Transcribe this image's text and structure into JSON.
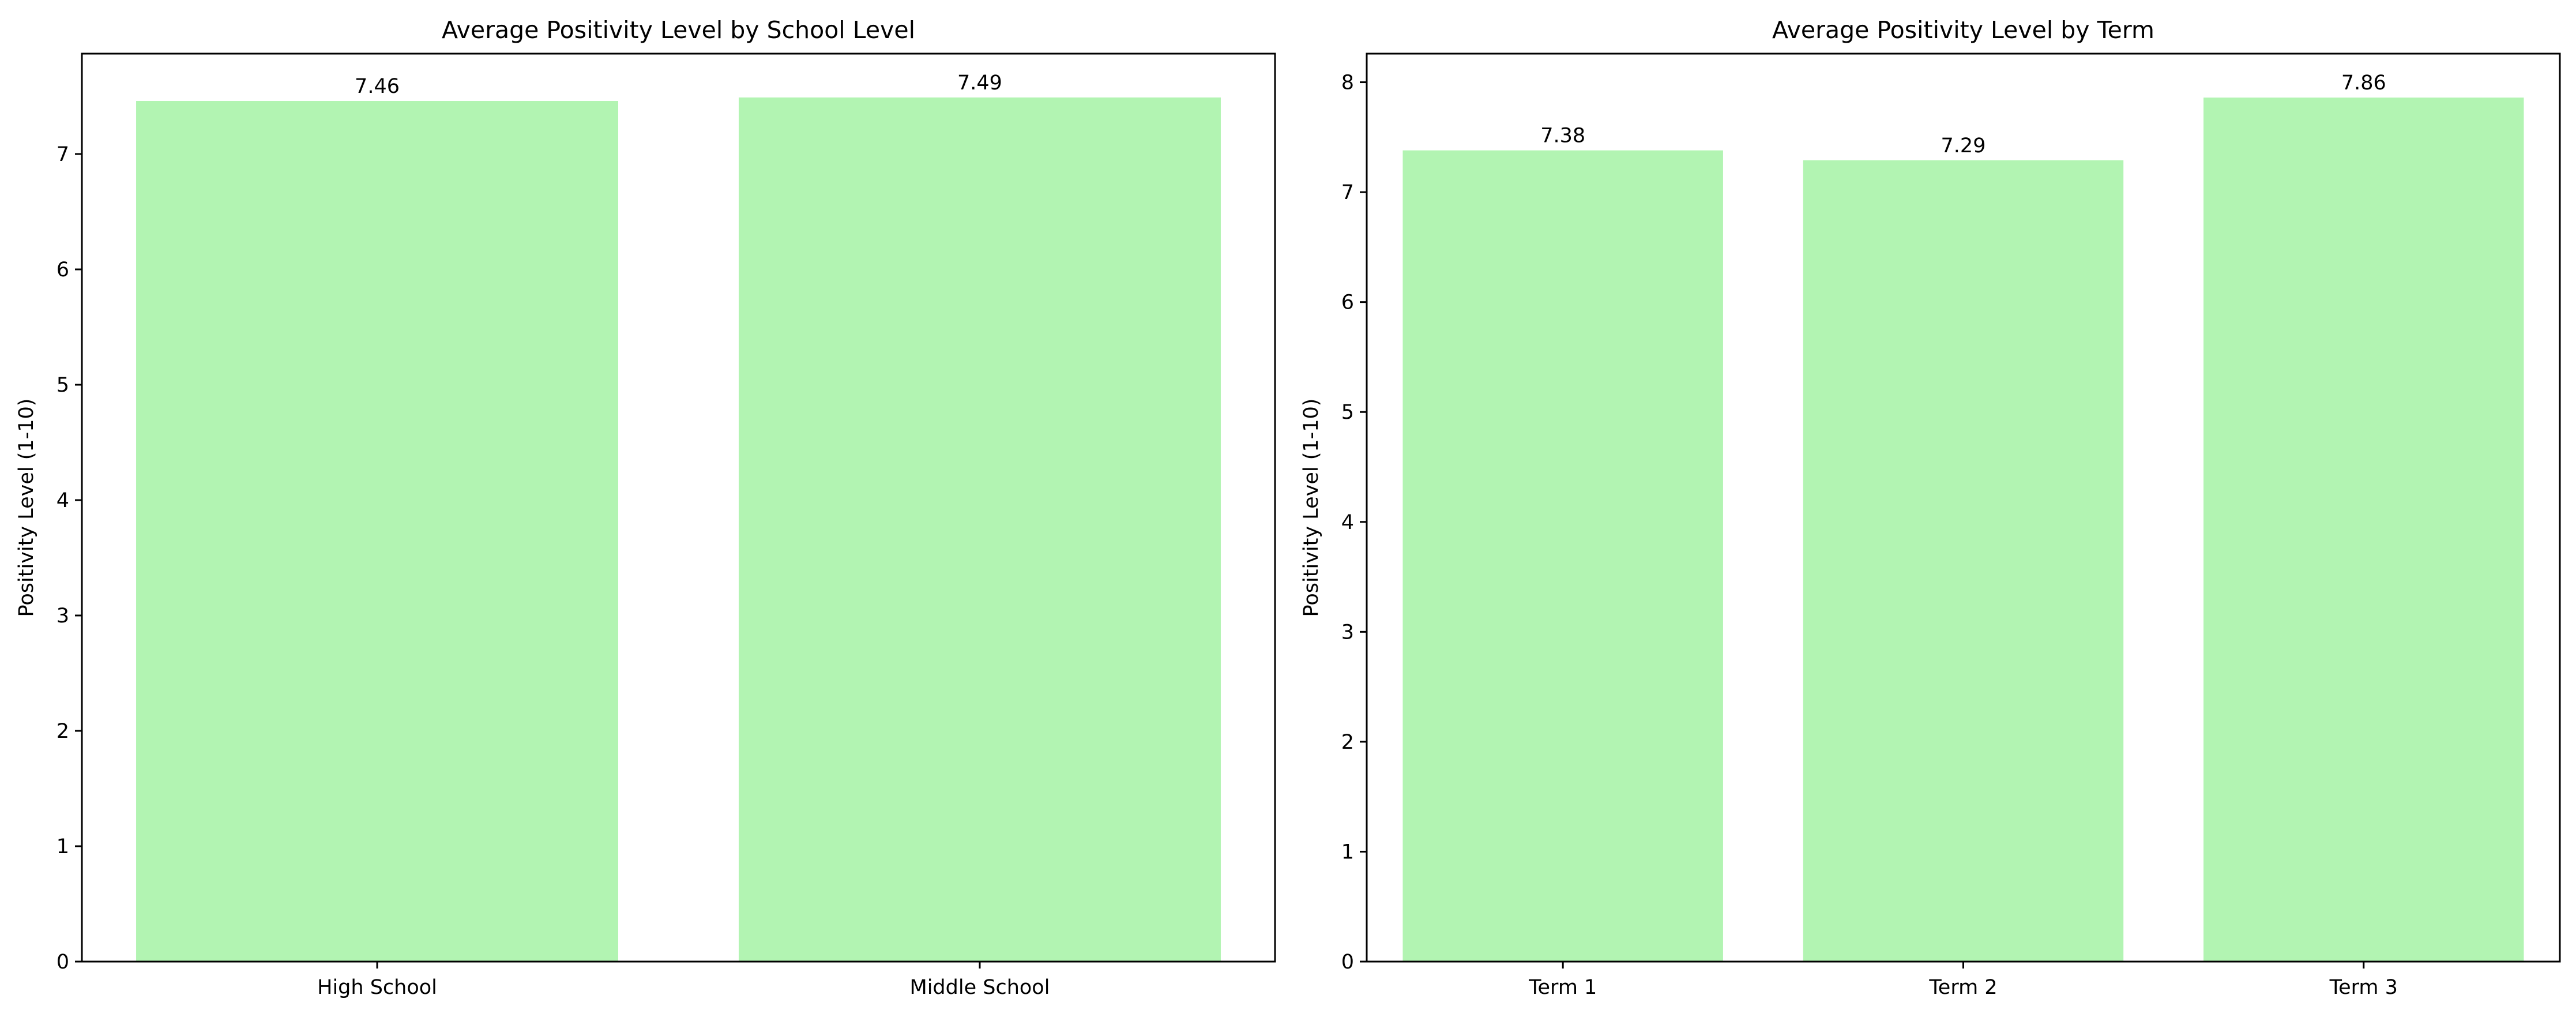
{
  "chart_data": [
    {
      "type": "bar",
      "title": "Average Positivity Level by School Level",
      "xlabel": "",
      "ylabel": "Positivity Level (1-10)",
      "categories": [
        "High School",
        "Middle School"
      ],
      "values": [
        7.46,
        7.49
      ],
      "value_labels": [
        "7.46",
        "7.49"
      ],
      "ylim": [
        0,
        7.87
      ],
      "yticks": [
        0,
        1,
        2,
        3,
        4,
        5,
        6,
        7
      ],
      "bar_color": "#b2f4b2",
      "grid": false,
      "legend": "none"
    },
    {
      "type": "bar",
      "title": "Average Positivity Level by Term",
      "xlabel": "",
      "ylabel": "Positivity Level (1-10)",
      "categories": [
        "Term 1",
        "Term 2",
        "Term 3"
      ],
      "values": [
        7.38,
        7.29,
        7.86
      ],
      "value_labels": [
        "7.38",
        "7.29",
        "7.86"
      ],
      "ylim": [
        0,
        8.26
      ],
      "yticks": [
        0,
        1,
        2,
        3,
        4,
        5,
        6,
        7,
        8
      ],
      "bar_color": "#b2f4b2",
      "grid": false,
      "legend": "none"
    }
  ]
}
